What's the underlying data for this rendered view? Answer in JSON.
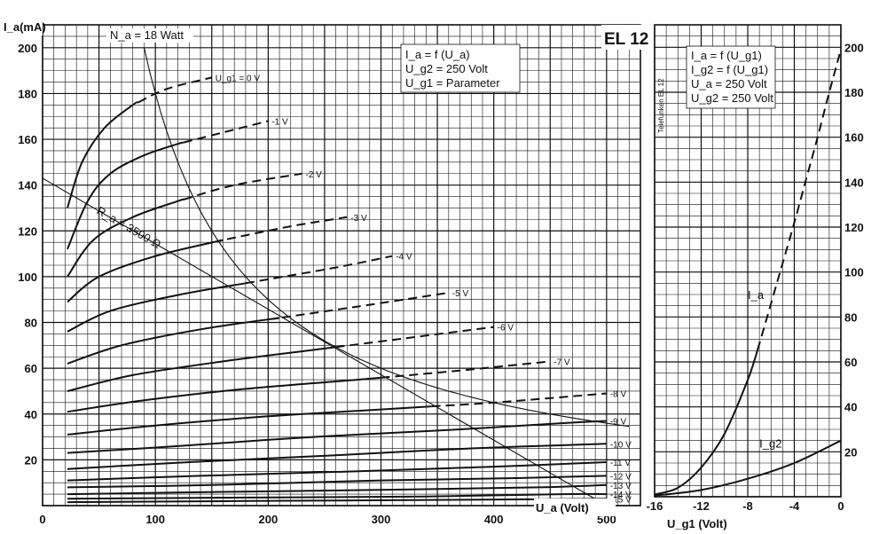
{
  "chart_data": [
    {
      "type": "line",
      "badge": "EL 12",
      "legend": [
        "I_a = f (U_a)",
        "U_g2 = 250 Volt",
        "U_g1 = Parameter"
      ],
      "ylabel": "I_a(mA)",
      "xlabel": "U_a (Volt)",
      "xlim": [
        0,
        530
      ],
      "ylim": [
        0,
        210
      ],
      "x_ticks": [
        0,
        100,
        200,
        300,
        400,
        500
      ],
      "y_ticks": [
        20,
        40,
        60,
        80,
        100,
        120,
        140,
        160,
        180,
        200
      ],
      "grid": true,
      "power_hyperbola": {
        "label": "N_a = 18 Watt",
        "power_w": 18
      },
      "load_line": {
        "label": "R_a = 3500 Ω",
        "x": [
          0,
          500
        ],
        "y": [
          143,
          0
        ]
      },
      "series": [
        {
          "name": "U_g1 = 0 V",
          "x": [
            22,
            35,
            55,
            80,
            110,
            150
          ],
          "y": [
            130,
            150,
            165,
            175,
            182,
            187
          ],
          "dashed_from_x": 85
        },
        {
          "name": "-1 V",
          "x": [
            22,
            40,
            60,
            90,
            120,
            160,
            200
          ],
          "y": [
            112,
            133,
            145,
            153,
            158,
            163,
            168
          ],
          "dashed_from_x": 125
        },
        {
          "name": "-2 V",
          "x": [
            22,
            45,
            80,
            120,
            170,
            230
          ],
          "y": [
            100,
            116,
            126,
            133,
            140,
            145
          ],
          "dashed_from_x": 125
        },
        {
          "name": "-3 V",
          "x": [
            22,
            50,
            100,
            160,
            220,
            270
          ],
          "y": [
            89,
            100,
            109,
            116,
            122,
            126
          ],
          "dashed_from_x": 160
        },
        {
          "name": "-4 V",
          "x": [
            22,
            60,
            120,
            190,
            260,
            310
          ],
          "y": [
            76,
            85,
            92,
            98,
            104,
            109
          ],
          "dashed_from_x": 180
        },
        {
          "name": "-5 V",
          "x": [
            22,
            70,
            140,
            210,
            280,
            360
          ],
          "y": [
            62,
            70,
            77,
            82,
            87,
            93
          ],
          "dashed_from_x": 210
        },
        {
          "name": "-6 V",
          "x": [
            22,
            80,
            160,
            240,
            320,
            400
          ],
          "y": [
            50,
            57,
            63,
            68,
            73,
            78
          ],
          "dashed_from_x": 260
        },
        {
          "name": "-7 V",
          "x": [
            22,
            90,
            180,
            280,
            370,
            450
          ],
          "y": [
            41,
            46,
            51,
            55,
            59,
            63
          ],
          "dashed_from_x": 300
        },
        {
          "name": "-8 V",
          "x": [
            22,
            100,
            200,
            300,
            400,
            500
          ],
          "y": [
            31,
            35,
            39,
            42,
            45,
            49
          ],
          "dashed_from_x": 345
        },
        {
          "name": "-9 V",
          "x": [
            22,
            120,
            240,
            360,
            460,
            500
          ],
          "y": [
            23,
            26,
            30,
            33,
            36,
            37
          ]
        },
        {
          "name": "-10 V",
          "x": [
            22,
            130,
            260,
            380,
            500
          ],
          "y": [
            16,
            19,
            22,
            25,
            27
          ]
        },
        {
          "name": "-11 V",
          "x": [
            22,
            140,
            280,
            400,
            500
          ],
          "y": [
            11,
            13,
            15,
            17,
            19
          ]
        },
        {
          "name": "-12 V",
          "x": [
            22,
            150,
            300,
            420,
            500
          ],
          "y": [
            8,
            9,
            11,
            12,
            13
          ]
        },
        {
          "name": "-13 V",
          "x": [
            22,
            160,
            320,
            440,
            500
          ],
          "y": [
            5,
            6,
            7,
            8,
            9
          ]
        },
        {
          "name": "-14 V",
          "x": [
            22,
            170,
            340,
            460,
            500
          ],
          "y": [
            3,
            3.5,
            4,
            5,
            5
          ]
        },
        {
          "name": "-15 V",
          "x": [
            22,
            180,
            360,
            500
          ],
          "y": [
            1.5,
            2,
            2.5,
            3
          ]
        }
      ]
    },
    {
      "type": "line",
      "legend": [
        "I_a = f (U_g1)",
        "I_g2 = f (U_g1)",
        "U_a = 250 Volt",
        "U_g2 = 250 Volt"
      ],
      "side_label": "Telefunken EL 12",
      "xlabel": "U_g1 (Volt)",
      "xlim": [
        -16,
        0
      ],
      "ylim": [
        0,
        210
      ],
      "x_ticks": [
        -16,
        -12,
        -8,
        -4,
        0
      ],
      "x_tick_labels": [
        "-16",
        "-12",
        "-8",
        "-4",
        "0"
      ],
      "y_ticks": [
        20,
        40,
        60,
        80,
        100,
        120,
        140,
        160,
        180,
        200
      ],
      "grid": true,
      "series": [
        {
          "name": "I_a",
          "x": [
            -16,
            -14,
            -12,
            -10,
            -8,
            -7,
            -6,
            -5,
            -4,
            -3,
            -2,
            -1,
            0
          ],
          "y": [
            1,
            4,
            13,
            28,
            52,
            68,
            86,
            104,
            122,
            141,
            160,
            180,
            199
          ],
          "dashed_from_x": -7
        },
        {
          "name": "I_g2",
          "x": [
            -16,
            -12,
            -8,
            -4,
            0
          ],
          "y": [
            0.5,
            3,
            8,
            15,
            25
          ]
        }
      ]
    }
  ]
}
